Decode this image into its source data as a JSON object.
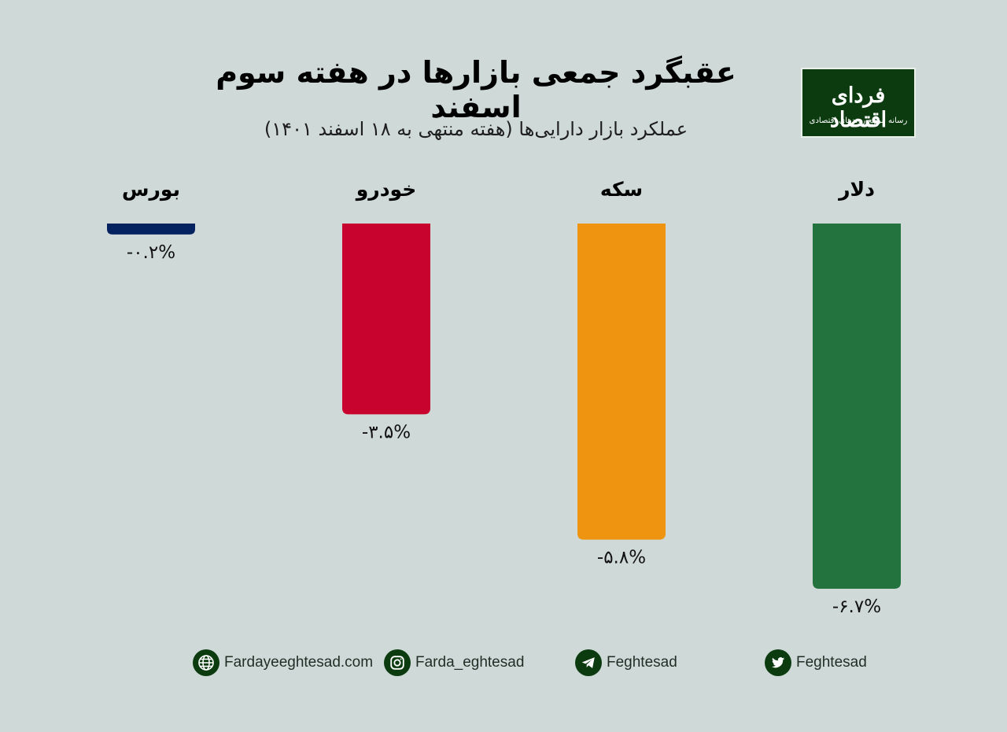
{
  "title": "عقبگرد جمعی بازارها در هفته سوم اسفند",
  "subtitle": "عملکرد بازار دارایی‌ها (هفته منتهی به ۱۸ اسفند ۱۴۰۱)",
  "logo": {
    "name": "فردای اقتصاد",
    "tagline": "رسانه مرجع روندهای اقتصادی"
  },
  "chart_data": {
    "type": "bar",
    "categories": [
      "بورس",
      "خودرو",
      "سکه",
      "دلار"
    ],
    "values": [
      -0.2,
      -3.5,
      -5.8,
      -6.7
    ],
    "data_labels": [
      "-۰.۲%",
      "-۳.۵%",
      "-۵.۸%",
      "-۶.۷%"
    ],
    "colors": [
      "#04225f",
      "#c8032e",
      "#ee9410",
      "#23733f"
    ],
    "ylim": [
      -7,
      0
    ],
    "grid": false,
    "legend": "none"
  },
  "footer": {
    "website": "Fardayeeghtesad.com",
    "instagram": "Farda_eghtesad",
    "telegram": "Feghtesad",
    "twitter": "Feghtesad",
    "icon_color": "#0c3b10"
  }
}
